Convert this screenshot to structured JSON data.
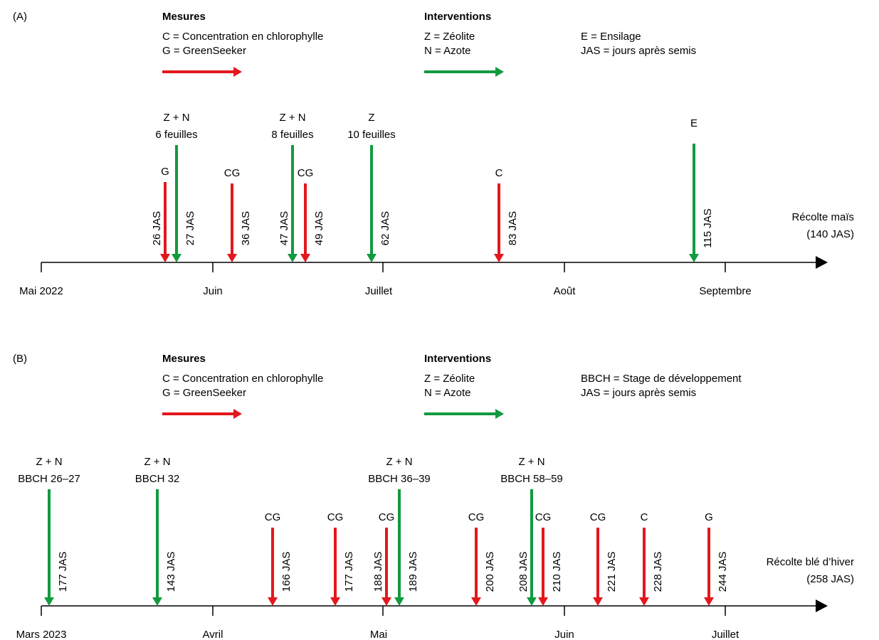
{
  "colors": {
    "mesure": "#e3171e",
    "intervention": "#119a3f",
    "axis": "#000000"
  },
  "panels": [
    {
      "panel_label": "(A)",
      "legend": {
        "mesures_title": "Mesures",
        "mesures_lines": [
          "C = Concentration en chlorophylle",
          "G = GreenSeeker"
        ],
        "interventions_title": "Interventions",
        "interventions_lines": [
          "Z = Zéolite",
          "N = Azote"
        ],
        "extra_lines": [
          "E = Ensilage",
          "JAS = jours après semis"
        ]
      },
      "months": [
        "Mai 2022",
        "Juin",
        "Juillet",
        "Août",
        "Septembre"
      ],
      "harvest": [
        "Récolte maïs",
        "(140 JAS)"
      ],
      "events": [
        {
          "type": "mesure",
          "label_lines": [
            "G"
          ],
          "jas": "26 JAS"
        },
        {
          "type": "intervention",
          "label_lines": [
            "Z + N",
            "6 feuilles"
          ],
          "jas": "27 JAS"
        },
        {
          "type": "mesure",
          "label_lines": [
            "CG"
          ],
          "jas": "36 JAS"
        },
        {
          "type": "intervention",
          "label_lines": [
            "Z + N",
            "8 feuilles"
          ],
          "jas": "47 JAS"
        },
        {
          "type": "mesure",
          "label_lines": [
            "CG"
          ],
          "jas": "49 JAS"
        },
        {
          "type": "intervention",
          "label_lines": [
            "Z",
            "10 feuilles"
          ],
          "jas": "62 JAS"
        },
        {
          "type": "mesure",
          "label_lines": [
            "C"
          ],
          "jas": "83 JAS"
        },
        {
          "type": "intervention",
          "label_lines": [
            "E"
          ],
          "jas": "115 JAS"
        }
      ]
    },
    {
      "panel_label": "(B)",
      "legend": {
        "mesures_title": "Mesures",
        "mesures_lines": [
          "C = Concentration en chlorophylle",
          "G = GreenSeeker"
        ],
        "interventions_title": "Interventions",
        "interventions_lines": [
          "Z = Zéolite",
          "N = Azote"
        ],
        "extra_lines": [
          "BBCH = Stage de développement",
          "JAS = jours après semis"
        ]
      },
      "months": [
        "Mars 2023",
        "Avril",
        "Mai",
        "Juin",
        "Juillet"
      ],
      "harvest": [
        "Récolte blé d’hiver",
        "(258 JAS)"
      ],
      "events": [
        {
          "type": "intervention",
          "label_lines": [
            "Z + N",
            "BBCH 26–27"
          ],
          "jas": "177 JAS"
        },
        {
          "type": "intervention",
          "label_lines": [
            "Z + N",
            "BBCH 32"
          ],
          "jas": "143 JAS"
        },
        {
          "type": "mesure",
          "label_lines": [
            "CG"
          ],
          "jas": "166 JAS"
        },
        {
          "type": "mesure",
          "label_lines": [
            "CG"
          ],
          "jas": "177 JAS"
        },
        {
          "type": "mesure",
          "label_lines": [
            "CG"
          ],
          "jas": "188 JAS"
        },
        {
          "type": "intervention",
          "label_lines": [
            "Z + N",
            "BBCH 36–39"
          ],
          "jas": "189 JAS"
        },
        {
          "type": "mesure",
          "label_lines": [
            "CG"
          ],
          "jas": "200 JAS"
        },
        {
          "type": "intervention",
          "label_lines": [
            "Z + N",
            "BBCH 58–59"
          ],
          "jas": "208 JAS"
        },
        {
          "type": "mesure",
          "label_lines": [
            "CG"
          ],
          "jas": "210 JAS"
        },
        {
          "type": "mesure",
          "label_lines": [
            "CG"
          ],
          "jas": "221 JAS"
        },
        {
          "type": "mesure",
          "label_lines": [
            "C"
          ],
          "jas": "228 JAS"
        },
        {
          "type": "mesure",
          "label_lines": [
            "G"
          ],
          "jas": "244 JAS"
        }
      ]
    }
  ]
}
